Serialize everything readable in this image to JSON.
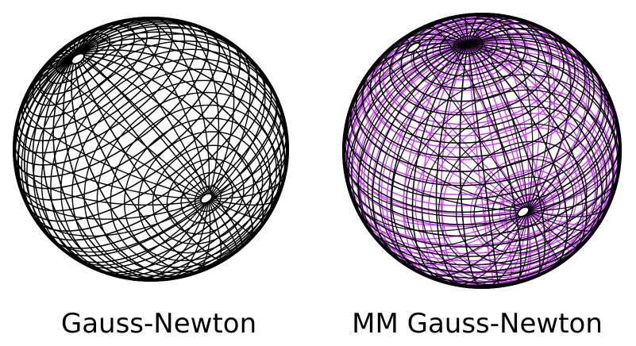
{
  "panels": [
    {
      "caption": "Gauss-Newton",
      "mesh_color": "#000000",
      "overlay_color": null
    },
    {
      "caption": "MM Gauss-Newton",
      "mesh_color": "#000000",
      "overlay_color": "#cc33ff"
    }
  ],
  "icons": {
    "sphere": "wireframe-sphere-icon"
  }
}
